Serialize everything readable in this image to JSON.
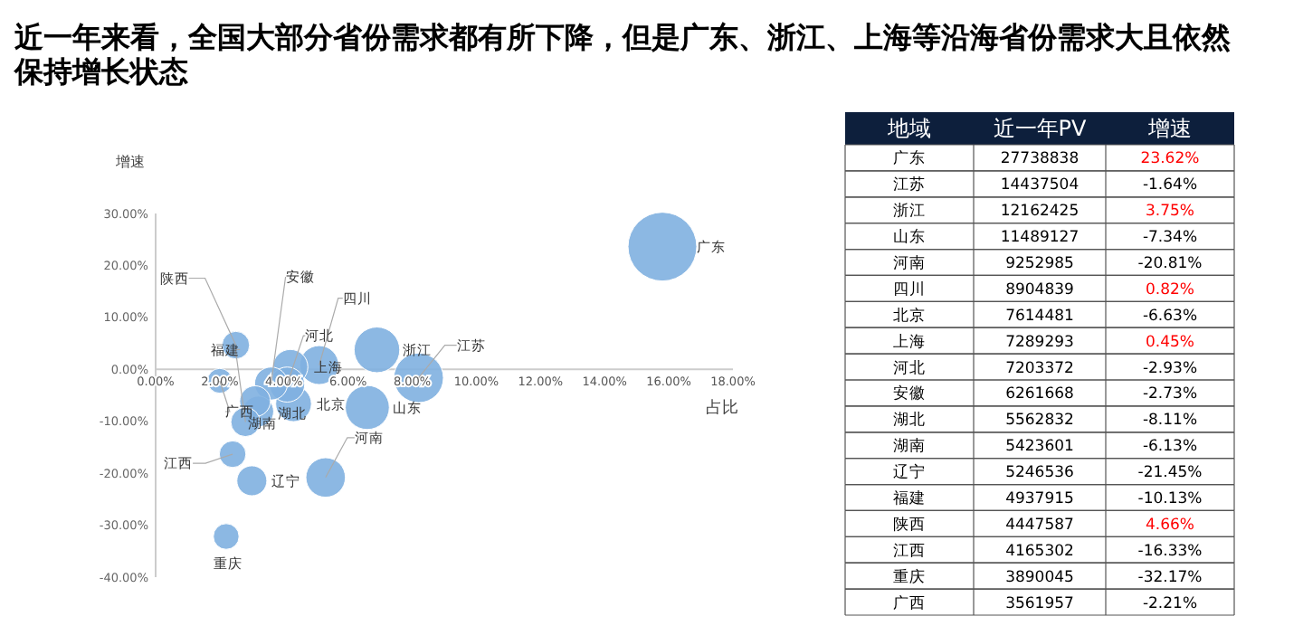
{
  "chart_data": [
    {
      "type": "bubble",
      "title": "近一年来看，全国大部分省份需求都有所下降，但是广东、浙江、上海等沿海省份需求大且依然保持增长状态",
      "xlabel": "占比",
      "ylabel": "增速",
      "x": [
        15.8,
        8.2,
        6.9,
        6.6,
        5.3,
        5.1,
        4.3,
        4.2,
        4.1,
        3.6,
        3.2,
        3.1,
        3.0,
        2.8,
        2.5,
        2.4,
        2.2,
        2.0
      ],
      "series": [
        {
          "color": "#7fb0e0",
          "values": [
            23.62,
            -1.64,
            3.75,
            -7.34,
            -20.81,
            0.82,
            -6.63,
            0.45,
            -2.93,
            -2.73,
            -8.11,
            -6.13,
            -21.45,
            -10.13,
            4.66,
            -16.33,
            -32.17,
            -2.21
          ],
          "sizes": [
            1,
            0.52,
            0.44,
            0.41,
            0.33,
            0.32,
            0.27,
            0.26,
            0.26,
            0.23,
            0.2,
            0.2,
            0.19,
            0.18,
            0.16,
            0.15,
            0.14,
            0.13
          ]
        }
      ],
      "xlim": [
        0,
        18
      ],
      "xticks": [
        {
          "value": 0,
          "label": "0.00%"
        },
        {
          "value": 2,
          "label": "2.00%"
        },
        {
          "value": 4,
          "label": "4.00%"
        },
        {
          "value": 6,
          "label": "6.00%"
        },
        {
          "value": 8,
          "label": "8.00%"
        },
        {
          "value": 10,
          "label": "10.00%"
        },
        {
          "value": 12,
          "label": "12.00%"
        },
        {
          "value": 14,
          "label": "14.00%"
        },
        {
          "value": 16,
          "label": "16.00%"
        },
        {
          "value": 18,
          "label": "18.00%"
        }
      ],
      "ylim": [
        -40,
        30
      ],
      "yticks": [
        {
          "value": -40,
          "label": "-40.00%"
        },
        {
          "value": -30,
          "label": "-30.00%"
        },
        {
          "value": -20,
          "label": "-20.00%"
        },
        {
          "value": -10,
          "label": "-10.00%"
        },
        {
          "value": 0,
          "label": "0.00%"
        },
        {
          "value": 10,
          "label": "10.00%"
        },
        {
          "value": 20,
          "label": "20.00%"
        },
        {
          "value": 30,
          "label": "30.00%"
        }
      ],
      "annotations": [
        {
          "text": "广东",
          "x": 15.8,
          "y": 23.62
        },
        {
          "text": "江苏",
          "x": 8.2,
          "y": -1.64
        },
        {
          "text": "浙江",
          "x": 6.9,
          "y": 3.75
        },
        {
          "text": "山东",
          "x": 6.6,
          "y": -7.34
        },
        {
          "text": "河南",
          "x": 5.3,
          "y": -20.81
        },
        {
          "text": "四川",
          "x": 5.1,
          "y": 0.82
        },
        {
          "text": "北京",
          "x": 4.3,
          "y": -6.63
        },
        {
          "text": "上海",
          "x": 4.2,
          "y": 0.45
        },
        {
          "text": "河北",
          "x": 4.1,
          "y": -2.93
        },
        {
          "text": "安徽",
          "x": 3.6,
          "y": -2.73
        },
        {
          "text": "湖北",
          "x": 3.2,
          "y": -8.11
        },
        {
          "text": "湖南",
          "x": 3.1,
          "y": -6.13
        },
        {
          "text": "辽宁",
          "x": 3.0,
          "y": -21.45
        },
        {
          "text": "福建",
          "x": 2.8,
          "y": -10.13
        },
        {
          "text": "陕西",
          "x": 2.5,
          "y": 4.66
        },
        {
          "text": "江西",
          "x": 2.4,
          "y": -16.33
        },
        {
          "text": "重庆",
          "x": 2.2,
          "y": -32.17
        },
        {
          "text": "广西",
          "x": 2.0,
          "y": -2.21
        }
      ]
    },
    {
      "type": "other",
      "xlabel": "地域",
      "categories": [
        "广东",
        "江苏",
        "浙江",
        "山东",
        "河南",
        "四川",
        "北京",
        "上海",
        "河北",
        "安徽",
        "湖北",
        "湖南",
        "辽宁",
        "福建",
        "陕西",
        "江西",
        "重庆",
        "广西"
      ],
      "data_labels": true,
      "series": [
        {
          "name": "近一年PV",
          "values": [
            27738838,
            14437504,
            12162425,
            11489127,
            9252985,
            8904839,
            7614481,
            7289293,
            7203372,
            6261668,
            5562832,
            5423601,
            5246536,
            4937915,
            4447587,
            4165302,
            3890045,
            3561957
          ]
        },
        {
          "name": "增速",
          "values": [
            23.62,
            -1.64,
            3.75,
            -7.34,
            -20.81,
            0.82,
            -6.63,
            0.45,
            -2.93,
            -2.73,
            -8.11,
            -6.13,
            -21.45,
            -10.13,
            4.66,
            -16.33,
            -32.17,
            -2.21
          ],
          "value_labels": [
            "23.62%",
            "-1.64%",
            "3.75%",
            "-7.34%",
            "-20.81%",
            "0.82%",
            "-6.63%",
            "0.45%",
            "-2.93%",
            "-2.73%",
            "-8.11%",
            "-6.13%",
            "-21.45%",
            "-10.13%",
            "4.66%",
            "-16.33%",
            "-32.17%",
            "-2.21%"
          ],
          "colors": [
            "#ff0000",
            "#000000",
            "#ff0000",
            "#000000",
            "#000000",
            "#ff0000",
            "#000000",
            "#ff0000",
            "#000000",
            "#000000",
            "#000000",
            "#000000",
            "#000000",
            "#000000",
            "#ff0000",
            "#000000",
            "#000000",
            "#000000"
          ]
        }
      ]
    }
  ]
}
